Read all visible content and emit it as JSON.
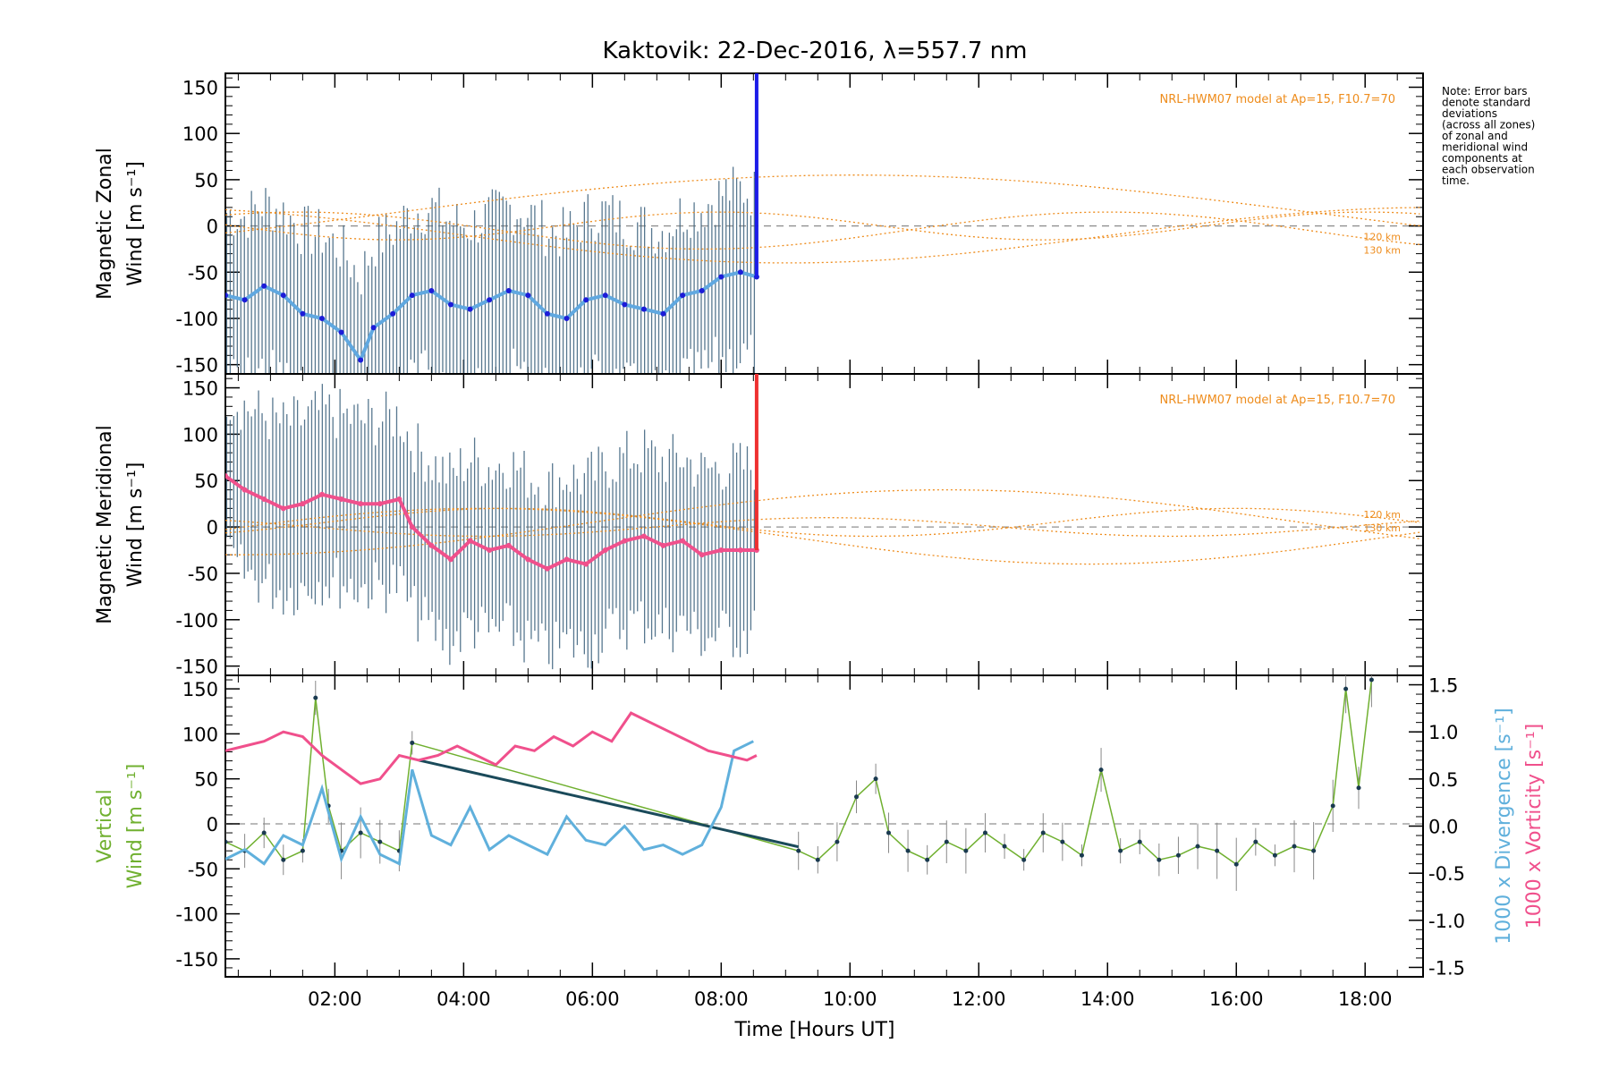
{
  "chart_data": {
    "type": "line",
    "title": "Kaktovik: 22-Dec-2016, λ=557.7 nm",
    "xlabel": "Time [Hours UT]",
    "xlim": [
      0.3,
      18.9
    ],
    "x_ticks": [
      "02:00",
      "04:00",
      "06:00",
      "08:00",
      "10:00",
      "12:00",
      "14:00",
      "16:00",
      "18:00"
    ],
    "note": "Note: Error bars denote standard deviations (across all zones) of zonal and meridional wind components at each observation time.",
    "colors": {
      "zonal_mean": "#60a8e0",
      "zonal_dark": "#1c1cd8",
      "zonal_end": "#1c1ce8",
      "meridional_mean": "#f0508c",
      "meridional_end": "#ee3030",
      "errorbars": "#3a607c",
      "model": "#ee8c1c",
      "vertical": "#70b030",
      "divergence": "#60b0dc",
      "vorticity": "#f0508c",
      "zero_line": "#909090"
    },
    "panels": [
      {
        "id": "zonal",
        "ylabel_line1": "Magnetic Zonal",
        "ylabel_line2": "Wind [m s⁻¹]",
        "ylim": [
          -160,
          165
        ],
        "y_ticks": [
          "-150",
          "-100",
          "-50",
          "0",
          "50",
          "100",
          "150"
        ],
        "model_label": "NRL-HWM07 model at Ap=15, F10.7=70",
        "altitude_labels": [
          "120 km",
          "130 km"
        ],
        "series": [
          {
            "kind": "mean",
            "x": [
              0.3,
              0.6,
              0.9,
              1.2,
              1.5,
              1.8,
              2.1,
              2.4,
              2.6,
              2.9,
              3.2,
              3.5,
              3.8,
              4.1,
              4.4,
              4.7,
              5.0,
              5.3,
              5.6,
              5.9,
              6.2,
              6.5,
              6.8,
              7.1,
              7.4,
              7.7,
              8.0,
              8.3,
              8.55
            ],
            "y": [
              -75,
              -80,
              -65,
              -75,
              -95,
              -100,
              -115,
              -145,
              -110,
              -95,
              -75,
              -70,
              -85,
              -90,
              -80,
              -70,
              -75,
              -95,
              -100,
              -80,
              -75,
              -85,
              -90,
              -95,
              -75,
              -70,
              -55,
              -50,
              -55
            ]
          }
        ]
      },
      {
        "id": "meridional",
        "ylabel_line1": "Magnetic Meridional",
        "ylabel_line2": "Wind [m s⁻¹]",
        "ylim": [
          -160,
          165
        ],
        "y_ticks": [
          "-150",
          "-100",
          "-50",
          "0",
          "50",
          "100",
          "150"
        ],
        "model_label": "NRL-HWM07 model at Ap=15, F10.7=70",
        "altitude_labels": [
          "120 km",
          "130 km"
        ],
        "series": [
          {
            "kind": "mean",
            "x": [
              0.3,
              0.6,
              0.9,
              1.2,
              1.5,
              1.8,
              2.1,
              2.4,
              2.7,
              3.0,
              3.2,
              3.5,
              3.8,
              4.1,
              4.4,
              4.7,
              5.0,
              5.3,
              5.6,
              5.9,
              6.2,
              6.5,
              6.8,
              7.1,
              7.4,
              7.7,
              8.0,
              8.3,
              8.55
            ],
            "y": [
              55,
              40,
              30,
              20,
              25,
              35,
              30,
              25,
              25,
              30,
              0,
              -20,
              -35,
              -15,
              -25,
              -20,
              -35,
              -45,
              -35,
              -40,
              -25,
              -15,
              -10,
              -20,
              -15,
              -30,
              -25,
              -25,
              -25
            ]
          }
        ]
      },
      {
        "id": "vertical",
        "ylabel_line1": "Vertical",
        "ylabel_line2": "Wind [m s⁻¹]",
        "ylim": [
          -170,
          165
        ],
        "y_ticks": [
          "-150",
          "-100",
          "-50",
          "0",
          "50",
          "100",
          "150"
        ],
        "y2lim": [
          -1.6,
          1.6
        ],
        "y2_ticks": [
          "-1.5",
          "-1.0",
          "-0.5",
          "0.0",
          "0.5",
          "1.0",
          "1.5"
        ],
        "y2label_div": "1000 x Divergence [s⁻¹]",
        "y2label_vor": "1000 x Vorticity [s⁻¹]",
        "series": [
          {
            "name": "vertical",
            "x": [
              0.3,
              0.6,
              0.9,
              1.2,
              1.5,
              1.7,
              1.9,
              2.1,
              2.4,
              2.7,
              3.0,
              3.2,
              9.2,
              9.5,
              9.8,
              10.1,
              10.4,
              10.6,
              10.9,
              11.2,
              11.5,
              11.8,
              12.1,
              12.4,
              12.7,
              13.0,
              13.3,
              13.6,
              13.9,
              14.2,
              14.5,
              14.8,
              15.1,
              15.4,
              15.7,
              16.0,
              16.3,
              16.6,
              16.9,
              17.2,
              17.5,
              17.7,
              17.9,
              18.1
            ],
            "y": [
              -20,
              -30,
              -10,
              -40,
              -30,
              140,
              20,
              -30,
              -10,
              -20,
              -30,
              90,
              -30,
              -40,
              -20,
              30,
              50,
              -10,
              -30,
              -40,
              -20,
              -30,
              -10,
              -25,
              -40,
              -10,
              -20,
              -35,
              60,
              -30,
              -20,
              -40,
              -35,
              -25,
              -30,
              -45,
              -20,
              -35,
              -25,
              -30,
              20,
              150,
              40,
              160
            ]
          },
          {
            "name": "divergence",
            "x": [
              0.3,
              0.6,
              0.9,
              1.2,
              1.5,
              1.8,
              2.1,
              2.4,
              2.7,
              3.0,
              3.2,
              3.5,
              3.8,
              4.1,
              4.4,
              4.7,
              5.0,
              5.3,
              5.6,
              5.9,
              6.2,
              6.5,
              6.8,
              7.1,
              7.4,
              7.7,
              8.0,
              8.2,
              8.5
            ],
            "y": [
              -0.35,
              -0.25,
              -0.4,
              -0.1,
              -0.2,
              0.4,
              -0.35,
              0.1,
              -0.3,
              -0.4,
              0.6,
              -0.1,
              -0.2,
              0.2,
              -0.25,
              -0.1,
              -0.2,
              -0.3,
              0.1,
              -0.15,
              -0.2,
              0.0,
              -0.25,
              -0.2,
              -0.3,
              -0.2,
              0.2,
              0.8,
              0.9
            ]
          },
          {
            "name": "vorticity",
            "x": [
              0.3,
              0.6,
              0.9,
              1.2,
              1.5,
              1.8,
              2.1,
              2.4,
              2.7,
              3.0,
              3.3,
              3.6,
              3.9,
              4.2,
              4.5,
              4.8,
              5.1,
              5.4,
              5.7,
              6.0,
              6.3,
              6.6,
              6.9,
              7.2,
              7.5,
              7.8,
              8.1,
              8.4,
              8.55
            ],
            "y": [
              0.8,
              0.85,
              0.9,
              1.0,
              0.95,
              0.75,
              0.6,
              0.45,
              0.5,
              0.75,
              0.7,
              0.75,
              0.85,
              0.75,
              0.65,
              0.85,
              0.8,
              0.95,
              0.85,
              1.0,
              0.9,
              1.2,
              1.1,
              1.0,
              0.9,
              0.8,
              0.75,
              0.7,
              0.75
            ]
          },
          {
            "name": "trend",
            "x": [
              3.3,
              9.2
            ],
            "y": [
              0.7,
              -0.22
            ]
          }
        ]
      }
    ]
  }
}
